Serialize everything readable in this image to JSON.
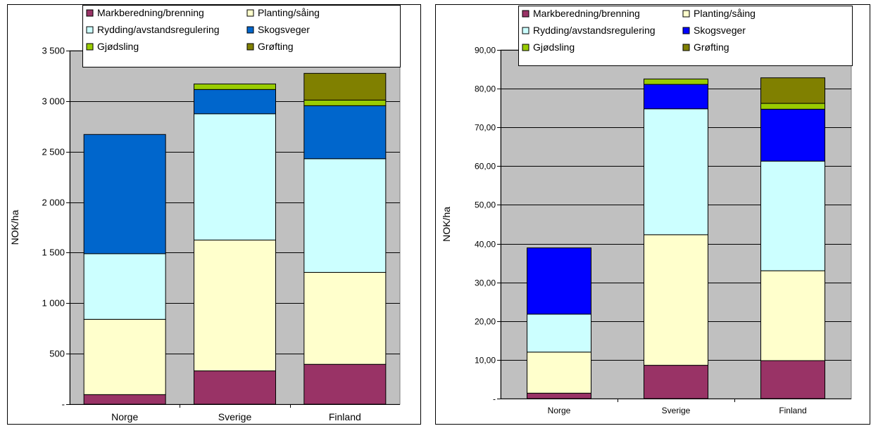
{
  "chart_data": [
    {
      "type": "stacked-bar",
      "ylabel": "NOK/ha",
      "xlabel": "",
      "title": "",
      "ylim": [
        0,
        3500
      ],
      "yticks": [
        0,
        500,
        1000,
        1500,
        2000,
        2500,
        3000,
        3500
      ],
      "ytick_labels": [
        "-",
        "500",
        "1 000",
        "1 500",
        "2 000",
        "2 500",
        "3 000",
        "3 500"
      ],
      "grid": true,
      "legend_position": "top",
      "categories": [
        "Norge",
        "Sverige",
        "Finland"
      ],
      "series": [
        {
          "name": "Markberedning/brenning",
          "color": "#993366",
          "values": [
            95,
            330,
            395
          ]
        },
        {
          "name": "Planting/såing",
          "color": "#FFFFCC",
          "values": [
            745,
            1295,
            910
          ]
        },
        {
          "name": "Rydding/avstandsregulering",
          "color": "#CCFFFF",
          "values": [
            650,
            1250,
            1125
          ]
        },
        {
          "name": "Skogsveger",
          "color": "#0066CC",
          "values": [
            1180,
            240,
            525
          ]
        },
        {
          "name": "Gjødsling",
          "color": "#99CC00",
          "values": [
            0,
            55,
            55
          ]
        },
        {
          "name": "Grøfting",
          "color": "#808000",
          "values": [
            0,
            0,
            265
          ]
        }
      ]
    },
    {
      "type": "stacked-bar",
      "ylabel": "NOK/ha",
      "xlabel": "",
      "title": "",
      "ylim": [
        0,
        90
      ],
      "yticks": [
        0,
        10,
        20,
        30,
        40,
        50,
        60,
        70,
        80,
        90
      ],
      "ytick_labels": [
        "-",
        "10,00",
        "20,00",
        "30,00",
        "40,00",
        "50,00",
        "60,00",
        "70,00",
        "80,00",
        "90,00"
      ],
      "grid": true,
      "legend_position": "top",
      "categories": [
        "Norge",
        "Sverige",
        "Finland"
      ],
      "series": [
        {
          "name": "Markberedning/brenning",
          "color": "#993366",
          "values": [
            1.4,
            8.6,
            9.8
          ]
        },
        {
          "name": "Planting/såing",
          "color": "#FFFFCC",
          "values": [
            10.6,
            33.7,
            23.2
          ]
        },
        {
          "name": "Rydding/avstandsregulering",
          "color": "#CCFFFF",
          "values": [
            9.8,
            32.5,
            28.3
          ]
        },
        {
          "name": "Skogsveger",
          "color": "#0000FF",
          "values": [
            17.1,
            6.3,
            13.4
          ]
        },
        {
          "name": "Gjødsling",
          "color": "#99CC00",
          "values": [
            0,
            1.4,
            1.5
          ]
        },
        {
          "name": "Grøfting",
          "color": "#808000",
          "values": [
            0,
            0,
            6.6
          ]
        }
      ]
    }
  ]
}
